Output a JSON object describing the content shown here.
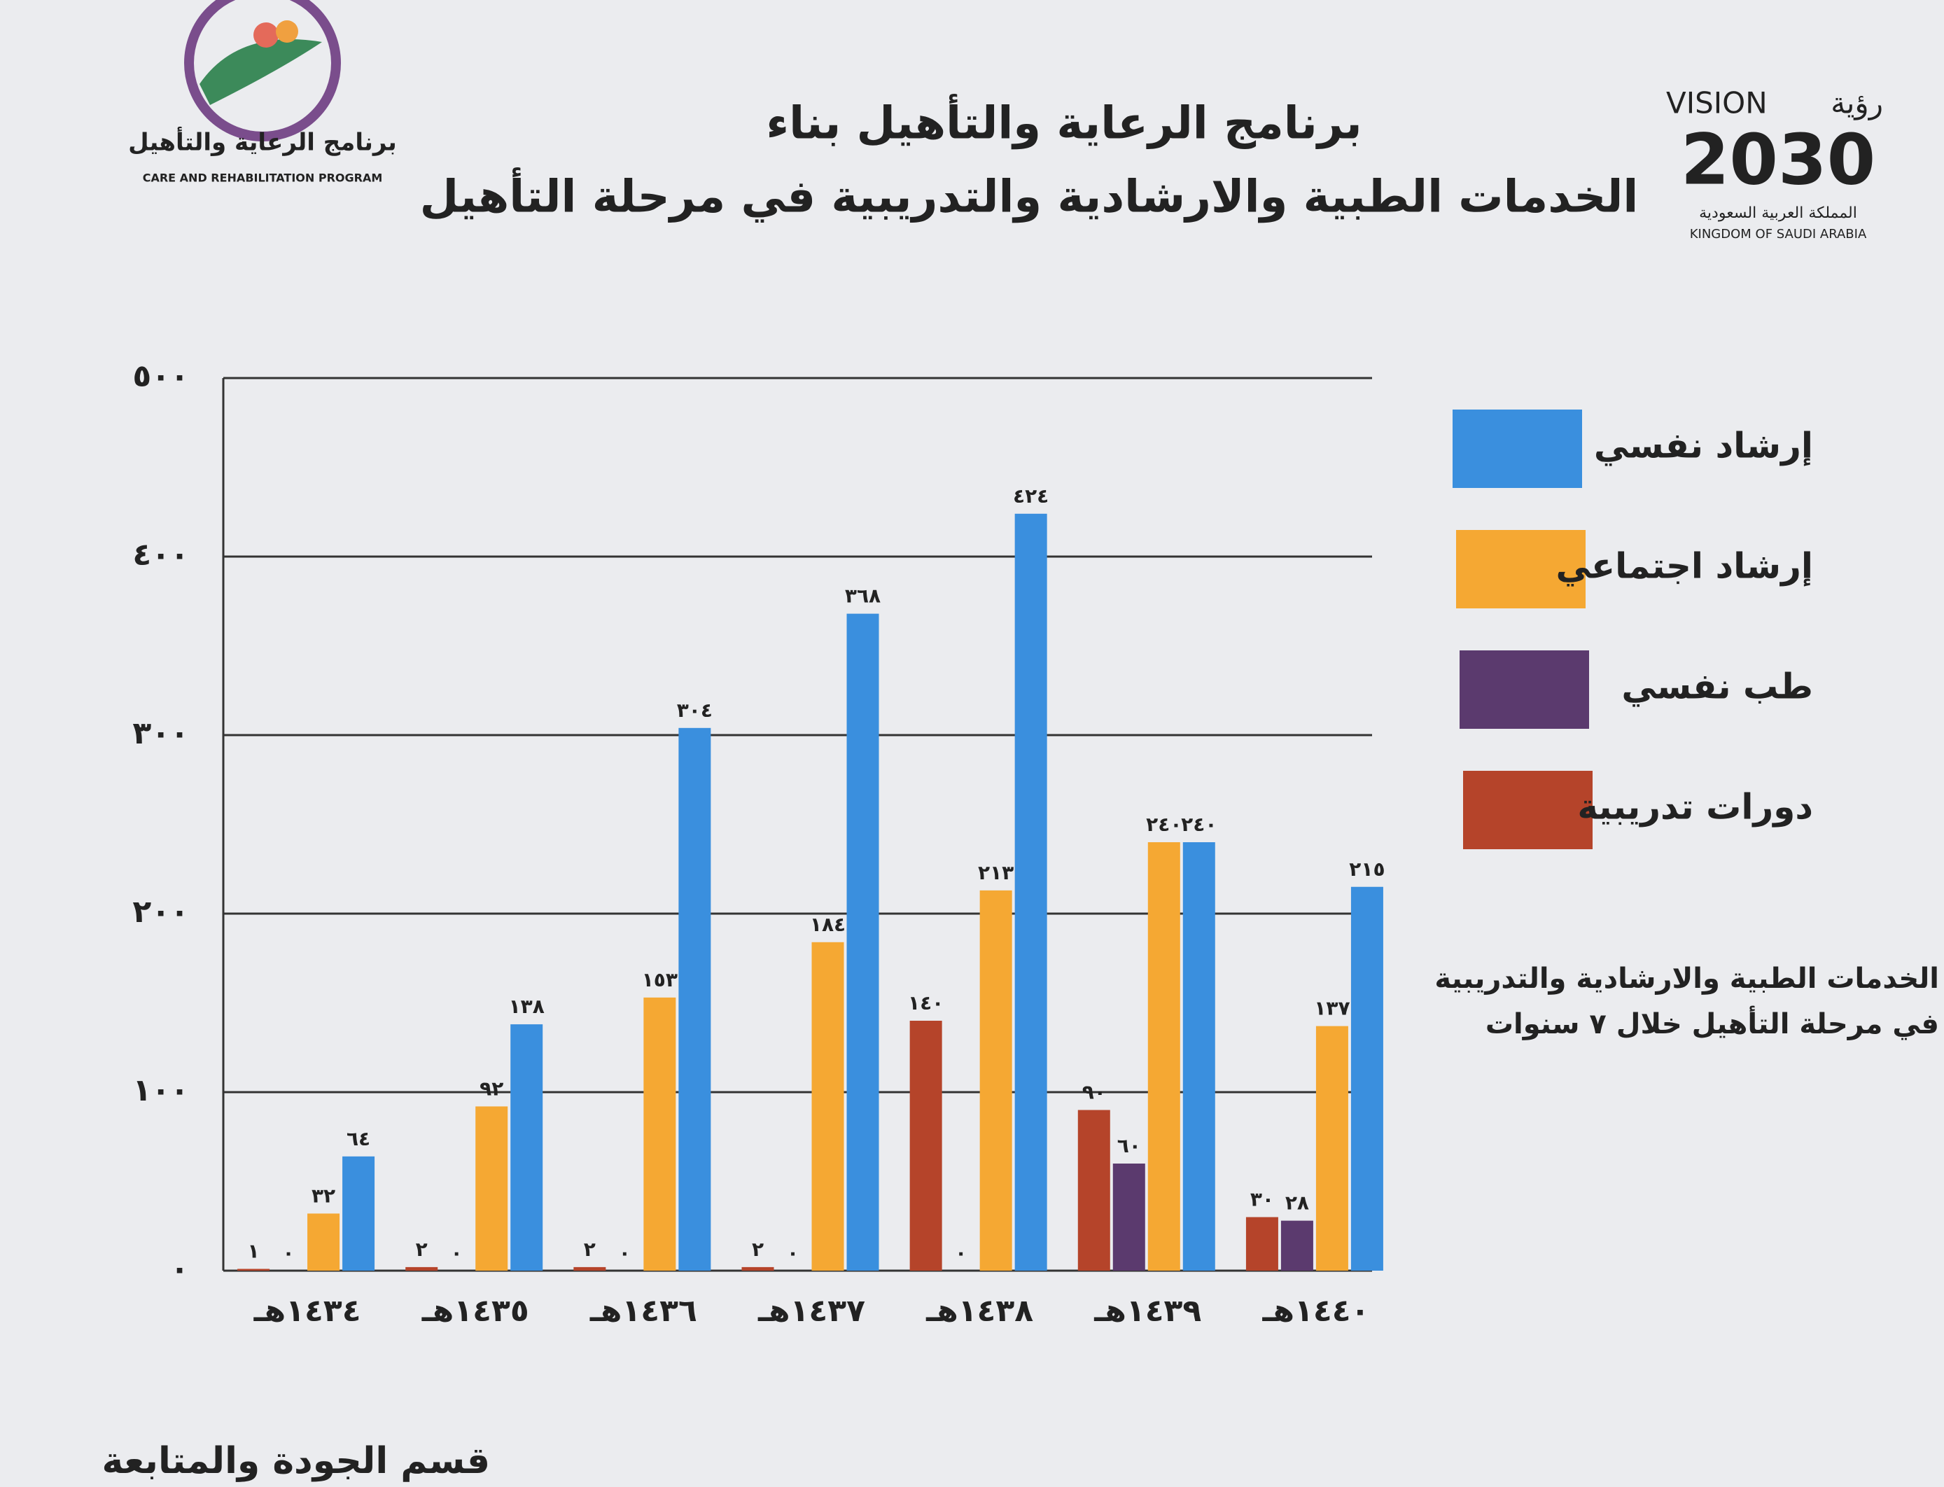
{
  "header": {
    "program_name_ar": "برنامج الرعاية والتأهيل",
    "program_name_en": "CARE AND REHABILITATION PROGRAM",
    "vision_en": "VISION",
    "vision_ar": "رؤية",
    "vision_year": "2030",
    "kingdom_ar": "المملكة العربية السعودية",
    "kingdom_en": "KINGDOM OF SAUDI ARABIA"
  },
  "footer": "قسم الجودة والمتابعة",
  "chart_data": {
    "type": "bar",
    "title": "برنامج الرعاية والتأهيل بناء",
    "subtitle": "الخدمات الطبية والارشادية والتدريبية في مرحلة التأهيل",
    "annotation": [
      "الخدمات الطبية والارشادية والتدريبية",
      "في مرحلة التأهيل خلال ٧ سنوات"
    ],
    "categories": [
      "١٤٣٤هـ",
      "١٤٣٥هـ",
      "١٤٣٦هـ",
      "١٤٣٧هـ",
      "١٤٣٨هـ",
      "١٤٣٩هـ",
      "١٤٤٠هـ"
    ],
    "series": [
      {
        "name": "إرشاد نفسي",
        "color": "#3a8fde",
        "values": [
          64,
          138,
          304,
          368,
          424,
          240,
          215
        ],
        "value_labels": [
          "٦٤",
          "١٣٨",
          "٣٠٤",
          "٣٦٨",
          "٤٢٤",
          "٢٤٠",
          "٢١٥"
        ]
      },
      {
        "name": "إرشاد اجتماعي",
        "color": "#f5a833",
        "values": [
          32,
          92,
          153,
          184,
          213,
          240,
          137
        ],
        "value_labels": [
          "٣٢",
          "٩٢",
          "١٥٣",
          "١٨٤",
          "٢١٣",
          "٢٤٠",
          "١٣٧"
        ]
      },
      {
        "name": "طب نفسي",
        "color": "#5b3a6e",
        "values": [
          0,
          0,
          0,
          0,
          0,
          60,
          28
        ],
        "value_labels": [
          "٠",
          "٠",
          "٠",
          "٠",
          "٠",
          "٦٠",
          "٢٨"
        ]
      },
      {
        "name": "دورات تدريبية",
        "color": "#b5442a",
        "values": [
          1,
          2,
          2,
          2,
          140,
          90,
          30
        ],
        "value_labels": [
          "١",
          "٢",
          "٢",
          "٢",
          "١٤٠",
          "٩٠",
          "٣٠"
        ]
      }
    ],
    "ylim": [
      0,
      500
    ],
    "yticks": [
      {
        "value": 0,
        "label": "٠"
      },
      {
        "value": 100,
        "label": "١٠٠"
      },
      {
        "value": 200,
        "label": "٢٠٠"
      },
      {
        "value": 300,
        "label": "٣٠٠"
      },
      {
        "value": 400,
        "label": "٤٠٠"
      },
      {
        "value": 500,
        "label": "٥٠٠"
      }
    ],
    "grid": true,
    "legend": "right"
  }
}
